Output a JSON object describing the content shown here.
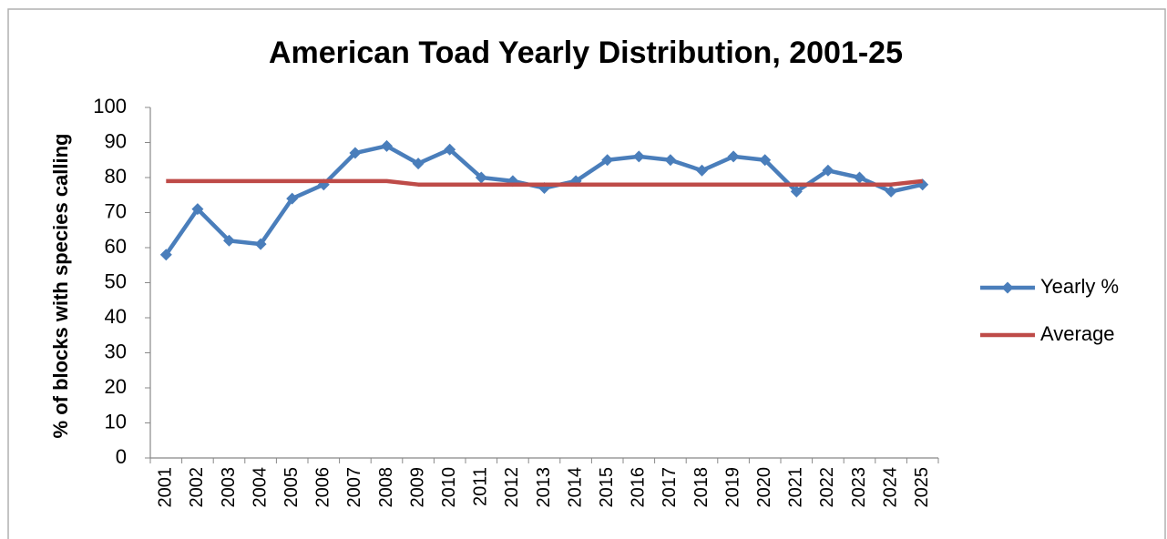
{
  "chart_data": {
    "type": "line",
    "title": "American Toad Yearly Distribution, 2001-25",
    "y_label": "% of blocks with species calling",
    "categories": [
      "2001",
      "2002",
      "2003",
      "2004",
      "2005",
      "2006",
      "2007",
      "2008",
      "2009",
      "2010",
      "2011",
      "2012",
      "2013",
      "2014",
      "2015",
      "2016",
      "2017",
      "2018",
      "2019",
      "2020",
      "2021",
      "2022",
      "2023",
      "2024",
      "2025"
    ],
    "series": [
      {
        "name": "Yearly %",
        "color": "#4a7ebb",
        "marker": "diamond",
        "values": [
          58,
          71,
          62,
          61,
          74,
          78,
          87,
          89,
          84,
          88,
          80,
          79,
          77,
          79,
          85,
          86,
          85,
          82,
          86,
          85,
          76,
          82,
          80,
          76,
          78
        ]
      },
      {
        "name": "Average",
        "color": "#be4b48",
        "values": [
          79,
          79,
          79,
          79,
          79,
          79,
          79,
          79,
          78,
          78,
          78,
          78,
          78,
          78,
          78,
          78,
          78,
          78,
          78,
          78,
          78,
          78,
          78,
          78,
          79
        ]
      }
    ],
    "ylim": [
      0,
      100
    ],
    "yticks": [
      0,
      10,
      20,
      30,
      40,
      50,
      60,
      70,
      80,
      90,
      100
    ],
    "grid": false,
    "legend": "right"
  }
}
